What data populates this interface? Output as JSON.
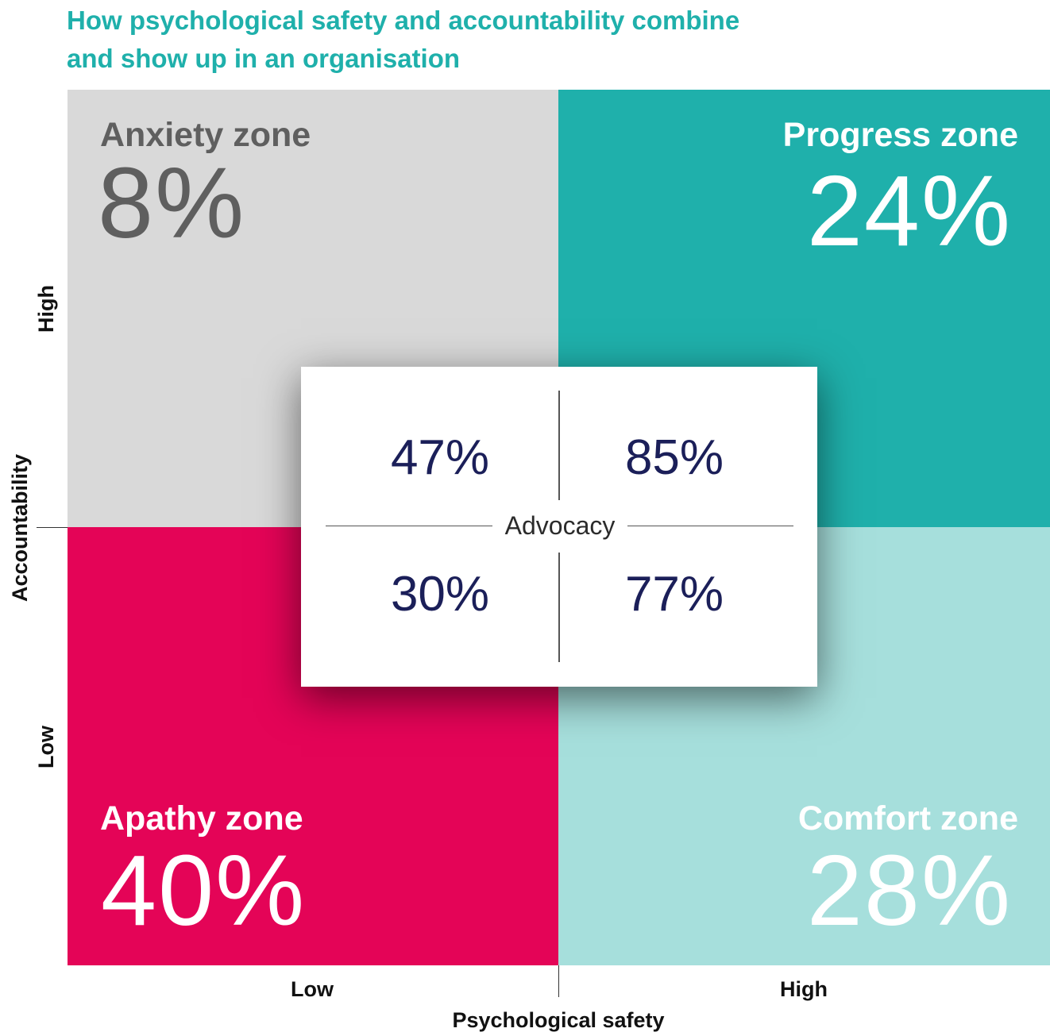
{
  "title": "How psychological safety and accountability combine and show up in an organisation",
  "colors": {
    "accent": "#1fb0ab",
    "anxiety_bg": "#d9d9d9",
    "anxiety_text": "#5f5f5f",
    "progress_bg": "#1fb0ab",
    "apathy_bg": "#e40457",
    "comfort_bg": "#a6dfdc",
    "advocacy_text": "#1b1f59"
  },
  "y_axis": {
    "label": "Accountability",
    "high": "High",
    "low": "Low"
  },
  "x_axis": {
    "label": "Psychological safety",
    "low": "Low",
    "high": "High"
  },
  "zones": {
    "anxiety": {
      "name": "Anxiety zone",
      "value": "8%"
    },
    "progress": {
      "name": "Progress zone",
      "value": "24%"
    },
    "apathy": {
      "name": "Apathy zone",
      "value": "40%"
    },
    "comfort": {
      "name": "Comfort zone",
      "value": "28%"
    }
  },
  "advocacy": {
    "label": "Advocacy",
    "top_left": "47%",
    "top_right": "85%",
    "bottom_left": "30%",
    "bottom_right": "77%"
  }
}
